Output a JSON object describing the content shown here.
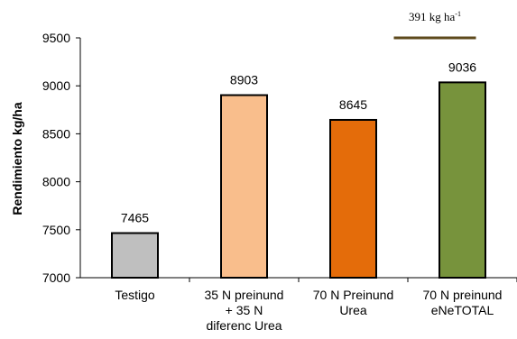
{
  "chart_data": {
    "type": "bar",
    "categories": [
      [
        "Testigo"
      ],
      [
        "35 N preinund",
        "+ 35 N",
        "diferenc Urea"
      ],
      [
        "70 N Preinund",
        "Urea"
      ],
      [
        "70 N preinund",
        "eNeTOTAL"
      ]
    ],
    "values": [
      7465,
      8903,
      8645,
      9036
    ],
    "data_labels": [
      "7465",
      "8903",
      "8645",
      "9036"
    ],
    "bar_colors": [
      "#bfbfbf",
      "#f9be8c",
      "#e46c0a",
      "#77933c"
    ],
    "bar_outline": "#000000",
    "ylabel": "Rendimiento kg/ha",
    "ylim": [
      7000,
      9500
    ],
    "yticks": [
      7000,
      7500,
      8000,
      8500,
      9000,
      9500
    ],
    "grid": false,
    "annotation": {
      "text": "391 kg ha",
      "superscript": "-1",
      "line_color": "#5e4a1c",
      "span": [
        2,
        3
      ]
    }
  }
}
